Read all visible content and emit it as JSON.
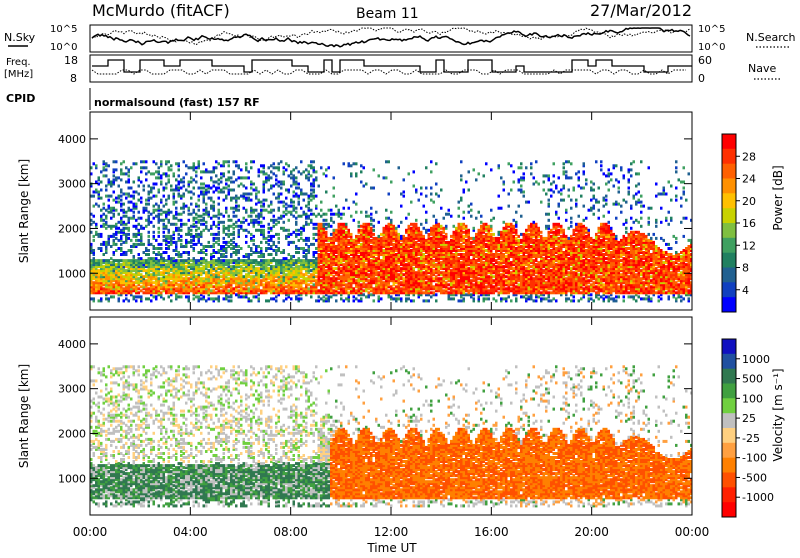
{
  "header": {
    "station": "McMurdo (fitACF)",
    "beam": "Beam 11",
    "date": "27/Mar/2012"
  },
  "top_panels": {
    "nsky_label": "N.Sky",
    "nsearch_label": "N.Search",
    "nsky_ticks": [
      "10^5",
      "10^0"
    ],
    "nsearch_ticks": [
      "10^5",
      "10^0"
    ],
    "freq_label_line1": "Freq.",
    "freq_label_line2": "[MHz]",
    "freq_ticks": [
      "18",
      "8"
    ],
    "nave_label": "Nave",
    "nave_ticks": [
      "60",
      "0"
    ],
    "cpid_label": "CPID",
    "cpid_text": "normalsound (fast) 157 RF"
  },
  "chart_data": [
    {
      "type": "heatmap",
      "name": "power",
      "ylabel": "Slant Range [km]",
      "xlabel": "Time UT",
      "xticks": [
        "00:00",
        "04:00",
        "08:00",
        "12:00",
        "16:00",
        "20:00",
        "00:00"
      ],
      "yticks": [
        "1000",
        "2000",
        "3000",
        "4000"
      ],
      "ylim": [
        180,
        4600
      ],
      "xlim_hours": [
        0,
        24
      ],
      "colorbar_label": "Power [dB]",
      "colorbar_ticks": [
        "28",
        "24",
        "20",
        "16",
        "12",
        "8",
        "4"
      ],
      "colorbar_colors": [
        "#ff0000",
        "#ff3000",
        "#ff6000",
        "#ff9000",
        "#ffc000",
        "#c8d200",
        "#7fbf40",
        "#3fa060",
        "#208060",
        "#206090",
        "#1040c0",
        "#0000ff"
      ]
    },
    {
      "type": "heatmap",
      "name": "velocity",
      "ylabel": "Slant Range [km]",
      "xlabel": "Time UT",
      "xticks": [
        "00:00",
        "04:00",
        "08:00",
        "12:00",
        "16:00",
        "20:00",
        "00:00"
      ],
      "yticks": [
        "1000",
        "2000",
        "3000",
        "4000"
      ],
      "ylim": [
        180,
        4600
      ],
      "xlim_hours": [
        0,
        24
      ],
      "colorbar_label": "Velocity [m s⁻¹]",
      "colorbar_ticks": [
        "1000",
        "500",
        "100",
        "25",
        "-25",
        "-100",
        "-500",
        "-1000"
      ],
      "colorbar_colors": [
        "#1010c0",
        "#2050a0",
        "#307850",
        "#40a040",
        "#70d040",
        "#c0c0c0",
        "#ffd080",
        "#ffa040",
        "#ff8000",
        "#ff5000",
        "#ff2000",
        "#ff0000"
      ]
    }
  ]
}
